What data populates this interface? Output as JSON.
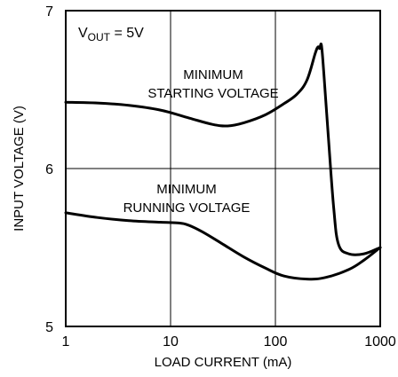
{
  "chart_data": {
    "type": "line",
    "x_scale": "log",
    "xlabel": "LOAD CURRENT (mA)",
    "ylabel": "INPUT VOLTAGE (V)",
    "xlim": [
      1,
      1000
    ],
    "ylim": [
      5,
      7
    ],
    "x_ticks": [
      1,
      10,
      100,
      1000
    ],
    "x_tick_labels": [
      "1",
      "10",
      "100",
      "1000"
    ],
    "y_ticks": [
      5,
      6,
      7
    ],
    "y_tick_labels": [
      "5",
      "6",
      "7"
    ],
    "grid": true,
    "legend": "none",
    "condition_label": {
      "main": "V",
      "sub": "OUT",
      "rest": " = 5V"
    },
    "annotations": [
      {
        "id": "starting",
        "lines": [
          "MINIMUM",
          "STARTING VOLTAGE"
        ]
      },
      {
        "id": "running",
        "lines": [
          "MINIMUM",
          "RUNNING VOLTAGE"
        ]
      }
    ],
    "series": [
      {
        "id": "starting",
        "color": "#000000",
        "points": [
          {
            "x": 1,
            "y": 6.42
          },
          {
            "x": 2,
            "y": 6.415
          },
          {
            "x": 4,
            "y": 6.4
          },
          {
            "x": 8,
            "y": 6.37
          },
          {
            "x": 15,
            "y": 6.32
          },
          {
            "x": 25,
            "y": 6.28
          },
          {
            "x": 35,
            "y": 6.27
          },
          {
            "x": 50,
            "y": 6.29
          },
          {
            "x": 80,
            "y": 6.34
          },
          {
            "x": 120,
            "y": 6.41
          },
          {
            "x": 160,
            "y": 6.47
          },
          {
            "x": 200,
            "y": 6.56
          },
          {
            "x": 240,
            "y": 6.73
          },
          {
            "x": 255,
            "y": 6.77
          },
          {
            "x": 265,
            "y": 6.76
          },
          {
            "x": 275,
            "y": 6.78
          },
          {
            "x": 290,
            "y": 6.6
          },
          {
            "x": 320,
            "y": 6.2
          },
          {
            "x": 360,
            "y": 5.75
          },
          {
            "x": 400,
            "y": 5.52
          },
          {
            "x": 500,
            "y": 5.46
          },
          {
            "x": 700,
            "y": 5.46
          },
          {
            "x": 1000,
            "y": 5.5
          }
        ]
      },
      {
        "id": "running",
        "color": "#000000",
        "points": [
          {
            "x": 1,
            "y": 5.72
          },
          {
            "x": 2,
            "y": 5.69
          },
          {
            "x": 4,
            "y": 5.67
          },
          {
            "x": 8,
            "y": 5.66
          },
          {
            "x": 12,
            "y": 5.655
          },
          {
            "x": 15,
            "y": 5.64
          },
          {
            "x": 20,
            "y": 5.6
          },
          {
            "x": 30,
            "y": 5.53
          },
          {
            "x": 50,
            "y": 5.44
          },
          {
            "x": 80,
            "y": 5.37
          },
          {
            "x": 120,
            "y": 5.32
          },
          {
            "x": 200,
            "y": 5.3
          },
          {
            "x": 300,
            "y": 5.31
          },
          {
            "x": 500,
            "y": 5.36
          },
          {
            "x": 700,
            "y": 5.42
          },
          {
            "x": 1000,
            "y": 5.5
          }
        ]
      }
    ]
  }
}
